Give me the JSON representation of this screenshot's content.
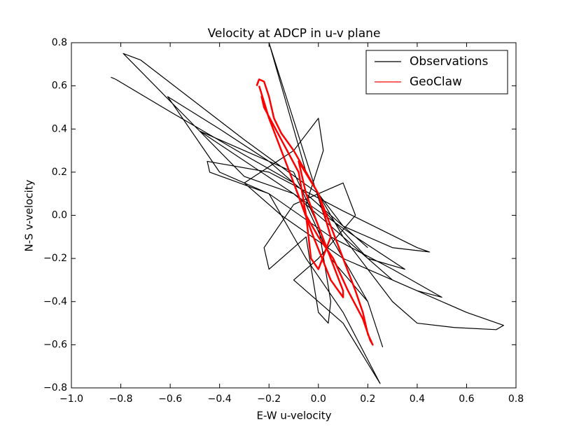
{
  "chart_data": {
    "type": "line",
    "title": "Velocity at ADCP in u-v plane",
    "x_label": "E-W u-velocity",
    "y_label": "N-S v-velocity",
    "xlim": [
      -1.0,
      0.8
    ],
    "ylim": [
      -0.8,
      0.8
    ],
    "xticks": [
      {
        "value": -1.0,
        "label": "−1.0"
      },
      {
        "value": -0.8,
        "label": "−0.8"
      },
      {
        "value": -0.6,
        "label": "−0.6"
      },
      {
        "value": -0.4,
        "label": "−0.4"
      },
      {
        "value": -0.2,
        "label": "−0.2"
      },
      {
        "value": 0,
        "label": "0.0"
      },
      0.2,
      0.4,
      0.6,
      0.8
    ],
    "yticks": [
      {
        "value": -0.8,
        "label": "−0.8"
      },
      {
        "value": -0.6,
        "label": "−0.6"
      },
      {
        "value": -0.4,
        "label": "−0.4"
      },
      {
        "value": -0.2,
        "label": "−0.2"
      },
      {
        "value": 0,
        "label": "0.0"
      },
      0.2,
      0.4,
      0.6,
      0.8
    ],
    "grid": false,
    "legend": "upper right",
    "series": [
      {
        "name": "Observations",
        "color": "#000000",
        "line_width": 1.2,
        "x": [
          -0.84,
          -0.82,
          -0.6,
          -0.3,
          -0.1,
          0.1,
          0.3,
          0.45,
          0.4,
          0.1,
          -0.2,
          -0.45,
          -0.44,
          -0.2,
          0.05,
          0.3,
          0.5,
          0.4,
          0.1,
          -0.15,
          -0.3,
          -0.1,
          0.0,
          0.02,
          -0.05,
          0.05,
          0.2,
          0.26,
          0.2,
          0.05,
          -0.2,
          -0.15,
          -0.05,
          0.1,
          0.3,
          0.6,
          0.75,
          0.72,
          0.55,
          0.4,
          0.3,
          0.1,
          -0.1,
          -0.48,
          -0.3,
          -0.1,
          0.0,
          0.05,
          0.04,
          0.0,
          -0.05,
          -0.2,
          -0.22,
          -0.1,
          0.1,
          0.15,
          0.0,
          -0.1,
          0.1,
          0.25,
          0.1,
          -0.05,
          -0.2,
          -0.4,
          -0.61,
          -0.4,
          -0.2,
          0.0,
          0.2,
          0.35,
          0.15,
          -0.1,
          -0.3,
          -0.79,
          -0.72,
          -0.3,
          0.0,
          0.1,
          0.2
        ],
        "values": [
          0.64,
          0.63,
          0.48,
          0.28,
          0.15,
          -0.05,
          -0.15,
          -0.17,
          -0.15,
          0.02,
          0.2,
          0.25,
          0.2,
          0.1,
          -0.1,
          -0.25,
          -0.38,
          -0.35,
          -0.2,
          0.0,
          0.15,
          0.3,
          0.45,
          0.3,
          0.05,
          -0.2,
          -0.4,
          -0.61,
          -0.4,
          -0.1,
          0.8,
          0.6,
          0.2,
          -0.1,
          -0.3,
          -0.45,
          -0.51,
          -0.53,
          -0.52,
          -0.5,
          -0.4,
          -0.1,
          0.1,
          0.39,
          0.3,
          0.2,
          -0.05,
          -0.4,
          -0.5,
          -0.45,
          -0.1,
          -0.25,
          -0.15,
          0.05,
          0.15,
          0.0,
          -0.2,
          -0.3,
          -0.5,
          -0.78,
          -0.45,
          -0.2,
          0.1,
          0.2,
          0.55,
          0.4,
          0.25,
          0.05,
          -0.2,
          -0.25,
          -0.1,
          0.1,
          0.18,
          0.75,
          0.72,
          0.35,
          0.1,
          -0.05,
          -0.15
        ]
      },
      {
        "name": "GeoClaw",
        "color": "#ff0000",
        "line_width": 2.5,
        "x": [
          -0.25,
          -0.24,
          -0.22,
          -0.2,
          -0.18,
          -0.15,
          -0.1,
          -0.05,
          0.0,
          0.05,
          0.1,
          0.15,
          0.18,
          0.2,
          0.22,
          0.21,
          0.18,
          0.12,
          0.06,
          0.0,
          -0.05,
          -0.1,
          -0.15,
          -0.2,
          -0.23,
          -0.22,
          -0.15,
          -0.08,
          -0.05,
          -0.03,
          0.0,
          0.05,
          0.0,
          -0.08,
          -0.05,
          0.05,
          0.1,
          0.1,
          0.05,
          -0.02,
          -0.1,
          -0.2,
          -0.24
        ],
        "values": [
          0.6,
          0.63,
          0.62,
          0.55,
          0.45,
          0.38,
          0.3,
          0.2,
          0.1,
          -0.05,
          -0.2,
          -0.35,
          -0.45,
          -0.55,
          -0.6,
          -0.58,
          -0.48,
          -0.35,
          -0.2,
          -0.1,
          0.0,
          0.15,
          0.3,
          0.45,
          0.55,
          0.5,
          0.35,
          0.2,
          0.0,
          -0.2,
          -0.25,
          -0.1,
          0.1,
          0.25,
          0.1,
          -0.2,
          -0.35,
          -0.38,
          -0.3,
          -0.1,
          0.15,
          0.45,
          0.6
        ]
      }
    ]
  }
}
